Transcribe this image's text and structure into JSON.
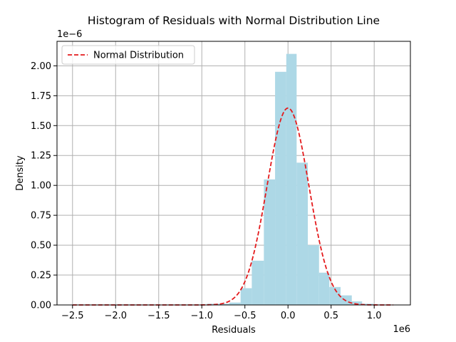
{
  "chart_data": {
    "type": "bar",
    "title": "Histogram of Residuals with Normal Distribution Line",
    "xlabel": "Residuals",
    "ylabel": "Density",
    "x_offset_text": "1e6",
    "y_offset_text": "1e−6",
    "xlim": [
      -2.68,
      1.42
    ],
    "ylim": [
      0,
      2.205
    ],
    "xticks": [
      -2.5,
      -2.0,
      -1.5,
      -1.0,
      -0.5,
      0.0,
      0.5,
      1.0
    ],
    "xtick_labels": [
      "−2.5",
      "−2.0",
      "−1.5",
      "−1.0",
      "−0.5",
      "0.0",
      "0.5",
      "1.0"
    ],
    "yticks": [
      0.0,
      0.25,
      0.5,
      0.75,
      1.0,
      1.25,
      1.5,
      1.75,
      2.0
    ],
    "ytick_labels": [
      "0.00",
      "0.25",
      "0.50",
      "0.75",
      "1.00",
      "1.25",
      "1.50",
      "1.75",
      "2.00"
    ],
    "grid": true,
    "legend": {
      "location": "upper-left",
      "entries": [
        "Normal Distribution"
      ]
    },
    "bins": [
      {
        "x0": -0.94,
        "x1": -0.81,
        "value": 0.01
      },
      {
        "x0": -0.81,
        "x1": -0.68,
        "value": 0.01
      },
      {
        "x0": -0.68,
        "x1": -0.55,
        "value": 0.02
      },
      {
        "x0": -0.55,
        "x1": -0.42,
        "value": 0.14
      },
      {
        "x0": -0.42,
        "x1": -0.28,
        "value": 0.37
      },
      {
        "x0": -0.28,
        "x1": -0.15,
        "value": 1.05
      },
      {
        "x0": -0.15,
        "x1": -0.02,
        "value": 1.95
      },
      {
        "x0": -0.02,
        "x1": 0.1,
        "value": 2.1
      },
      {
        "x0": 0.1,
        "x1": 0.23,
        "value": 1.19
      },
      {
        "x0": 0.23,
        "x1": 0.36,
        "value": 0.5
      },
      {
        "x0": 0.36,
        "x1": 0.48,
        "value": 0.27
      },
      {
        "x0": 0.48,
        "x1": 0.61,
        "value": 0.15
      },
      {
        "x0": 0.61,
        "x1": 0.74,
        "value": 0.08
      },
      {
        "x0": 0.74,
        "x1": 0.86,
        "value": 0.03
      },
      {
        "x0": 0.86,
        "x1": 0.99,
        "value": 0.01
      }
    ],
    "series": [
      {
        "name": "Normal Distribution",
        "style": "dashed",
        "mean": 0.0,
        "std": 0.2422,
        "peak": 1.647,
        "x_range": [
          -2.5,
          1.22
        ]
      }
    ],
    "colors": {
      "bars": "#add8e6",
      "line": "#e41a1c",
      "grid": "#b0b0b0"
    }
  }
}
